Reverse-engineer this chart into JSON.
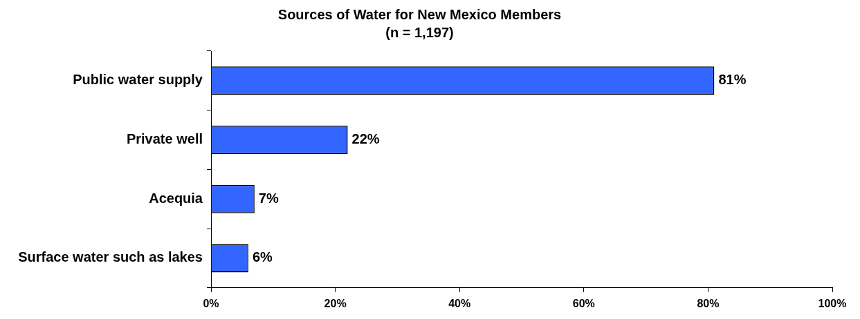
{
  "chart_data": {
    "type": "bar",
    "orientation": "horizontal",
    "title": "Sources of Water for New Mexico Members",
    "subtitle": "(n = 1,197)",
    "categories": [
      "Public water supply",
      "Private well",
      "Acequia",
      "Surface water such as lakes"
    ],
    "values": [
      81,
      22,
      7,
      6
    ],
    "value_labels": [
      "81%",
      "22%",
      "7%",
      "6%"
    ],
    "color": "#3366ff",
    "xlim": [
      0,
      100
    ],
    "xticks": [
      {
        "value": 0,
        "label": "0%"
      },
      {
        "value": 20,
        "label": "20%"
      },
      {
        "value": 40,
        "label": "40%"
      },
      {
        "value": 60,
        "label": "60%"
      },
      {
        "value": 80,
        "label": "80%"
      },
      {
        "value": 100,
        "label": "100%"
      }
    ],
    "grid": false,
    "legend": false
  }
}
